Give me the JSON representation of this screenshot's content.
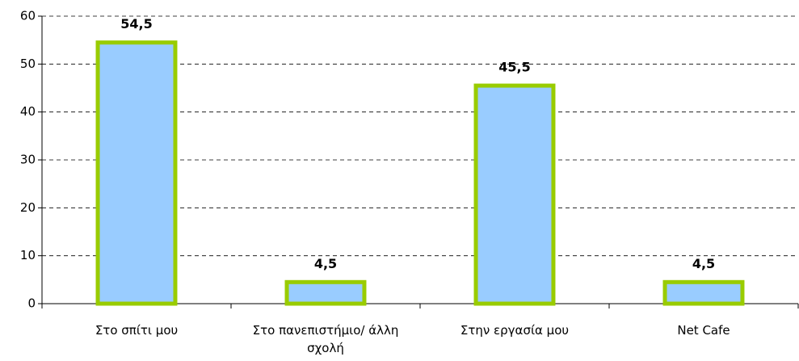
{
  "chart_data": {
    "type": "bar",
    "categories": [
      "Στο σπίτι μου",
      "Στο πανεπιστήμιο/ άλλη σχολή",
      "Στην εργασία μου",
      "Net Cafe"
    ],
    "values": [
      54.5,
      4.5,
      45.5,
      4.5
    ],
    "value_labels": [
      "54,5",
      "4,5",
      "45,5",
      "4,5"
    ],
    "color": "#99ccff",
    "edgecolor": "#99cc00",
    "ylim": [
      0,
      60
    ],
    "yticks": [
      0,
      10,
      20,
      30,
      40,
      50,
      60
    ],
    "grid": true
  }
}
